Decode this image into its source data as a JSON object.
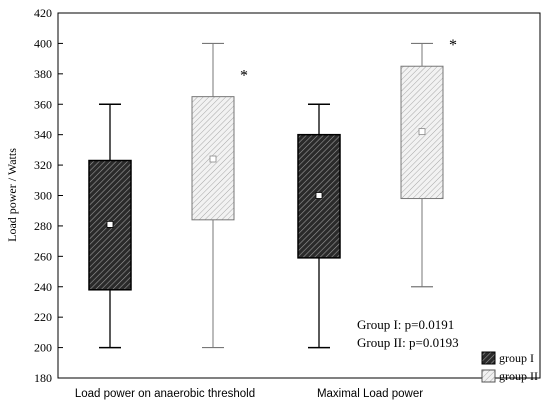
{
  "chart_data": {
    "type": "box",
    "title": "",
    "xlabel": "",
    "ylabel": "Load power / Watts",
    "ylim": [
      180,
      420
    ],
    "yticks": [
      180,
      200,
      220,
      240,
      260,
      280,
      300,
      320,
      340,
      360,
      380,
      400,
      420
    ],
    "grid": false,
    "categories": [
      "Load power on anaerobic threshold",
      "Maximal Load power"
    ],
    "series": [
      {
        "name": "group I",
        "color": "#222222",
        "fill_style": "dense-hatch",
        "boxes": [
          {
            "min": 200,
            "q1": 238,
            "median": 281,
            "q3": 323,
            "max": 360
          },
          {
            "min": 200,
            "q1": 259,
            "median": 300,
            "q3": 340,
            "max": 360
          }
        ]
      },
      {
        "name": "group II",
        "color": "#bbbbbb",
        "fill_style": "light-hatch",
        "boxes": [
          {
            "min": 200,
            "q1": 284,
            "median": 324,
            "q3": 365,
            "max": 400
          },
          {
            "min": 240,
            "q1": 298,
            "median": 342,
            "q3": 385,
            "max": 400
          }
        ]
      }
    ],
    "annotations": [
      {
        "text": "*",
        "category": 0,
        "series": 1
      },
      {
        "text": "*",
        "category": 1,
        "series": 1
      },
      {
        "text": "Group I: p=0.0191"
      },
      {
        "text": "Group II: p=0.0193"
      }
    ],
    "legend": {
      "placement": "bottom-right",
      "entries": [
        "group I",
        "group II"
      ]
    }
  }
}
